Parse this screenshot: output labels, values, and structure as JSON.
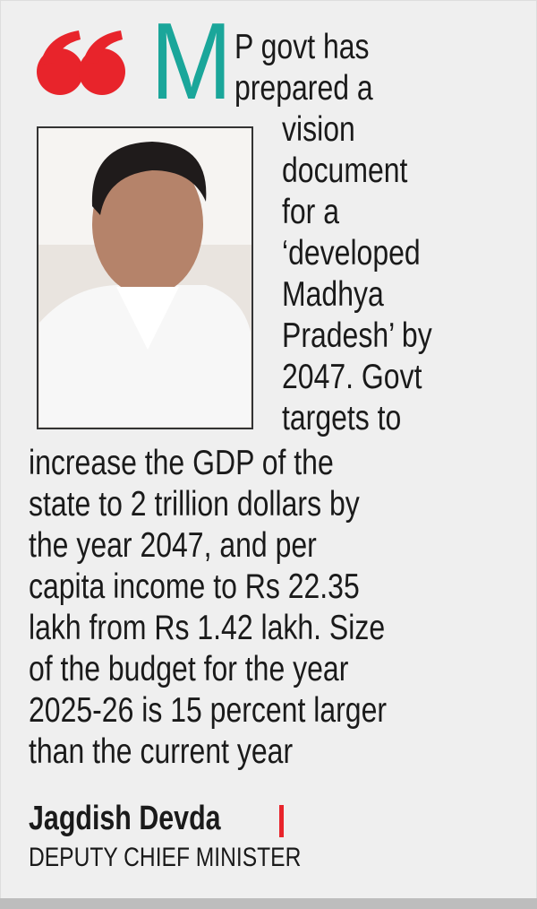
{
  "quote": {
    "drop_cap": "M",
    "lines": [
      "P govt has",
      "prepared a",
      "vision",
      "document",
      "for a",
      "‘developed",
      "Madhya",
      "Pradesh’ by",
      "2047. Govt",
      "targets to",
      "increase the GDP of the",
      "state to 2 trillion dollars by",
      "the year 2047, and per",
      "capita income to Rs 22.35",
      "lakh from Rs 1.42 lakh. Size",
      "of the budget for the year",
      "2025-26 is 15 percent larger",
      "than the current year"
    ]
  },
  "speaker": {
    "name": "Jagdish Devda",
    "title": "DEPUTY CHIEF MINISTER"
  }
}
